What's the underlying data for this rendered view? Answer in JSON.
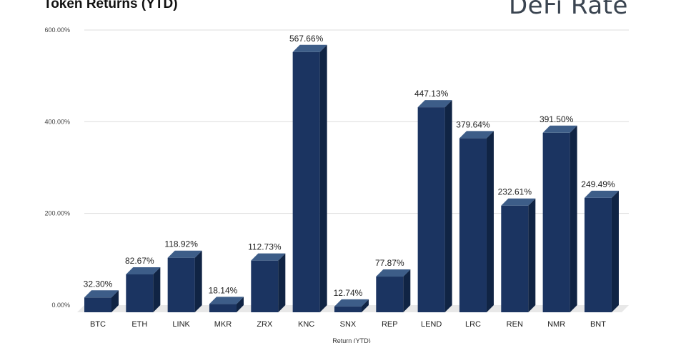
{
  "logo_text": "DeFi Rate",
  "chart_data": {
    "type": "bar",
    "title": "Token Returns (YTD)",
    "xlabel": "Return (YTD)",
    "ylabel": "",
    "ylim": [
      0,
      600
    ],
    "yticks": [
      0,
      200,
      400,
      600
    ],
    "ytick_labels": [
      "0.00%",
      "200.00%",
      "400.00%",
      "600.00%"
    ],
    "grid": true,
    "categories": [
      "BTC",
      "ETH",
      "LINK",
      "MKR",
      "ZRX",
      "KNC",
      "SNX",
      "REP",
      "LEND",
      "LRC",
      "REN",
      "NMR",
      "BNT"
    ],
    "values": [
      32.3,
      82.67,
      118.92,
      18.14,
      112.73,
      567.66,
      12.74,
      77.87,
      447.13,
      379.64,
      232.61,
      391.5,
      249.49
    ],
    "data_labels": [
      "32.30%",
      "82.67%",
      "118.92%",
      "18.14%",
      "112.73%",
      "567.66%",
      "12.74%",
      "77.87%",
      "447.13%",
      "379.64%",
      "232.61%",
      "391.50%",
      "249.49%"
    ],
    "colors": {
      "front": "#1b3461",
      "top": "#3d5d88",
      "side": "#102444",
      "floor": "#e8e8e8",
      "grid": "#dddddd"
    }
  }
}
